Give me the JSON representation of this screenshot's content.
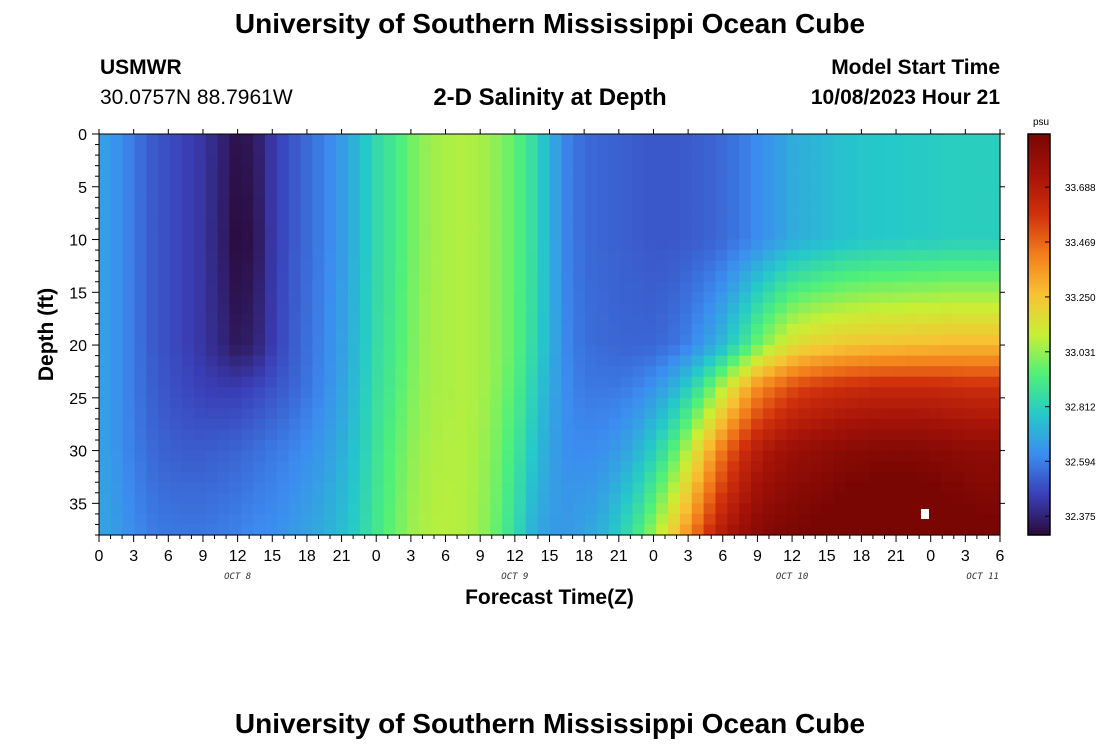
{
  "header": {
    "title": "University of Southern Mississippi Ocean Cube",
    "station": "USMWR",
    "coords": "30.0757N  88.7961W",
    "subtitle": "2-D Salinity at Depth",
    "model_label": "Model Start Time",
    "model_time": "10/08/2023 Hour 21"
  },
  "footer": {
    "title": "University of Southern Mississippi Ocean Cube"
  },
  "chart_data": {
    "type": "heatmap",
    "title": "2-D Salinity at Depth",
    "xlabel": "Forecast Time(Z)",
    "ylabel": "Depth (ft)",
    "x_tick_labels": [
      "0",
      "3",
      "6",
      "9",
      "12",
      "15",
      "18",
      "21",
      "0",
      "3",
      "6",
      "9",
      "12",
      "15",
      "18",
      "21",
      "0",
      "3",
      "6",
      "9",
      "12",
      "15",
      "18",
      "21",
      "0",
      "3",
      "6"
    ],
    "x_date_labels": [
      {
        "label": "OCT 8",
        "tick_index": 4
      },
      {
        "label": "OCT 9",
        "tick_index": 12
      },
      {
        "label": "OCT 10",
        "tick_index": 20
      },
      {
        "label": "OCT 11",
        "tick_index": 25.5
      }
    ],
    "x_range_hours": [
      0,
      78
    ],
    "y_tick_labels": [
      "0",
      "5",
      "10",
      "15",
      "20",
      "25",
      "30",
      "35"
    ],
    "y_ticks": [
      0,
      5,
      10,
      15,
      20,
      25,
      30,
      35
    ],
    "y_range": [
      0,
      38
    ],
    "y_inverted": true,
    "colorbar": {
      "unit": "psu",
      "ticks": [
        32.375,
        32.594,
        32.812,
        33.031,
        33.25,
        33.469,
        33.688
      ],
      "tick_labels": [
        "32.375",
        "32.594",
        "32.812",
        "33.031",
        "33.250",
        "33.469",
        "33.688"
      ],
      "min": 32.3,
      "max": 33.9,
      "colors": [
        "#2a0a3a",
        "#3a3fb8",
        "#3c8cf0",
        "#25c9c9",
        "#4ff07a",
        "#c9ef34",
        "#f8c233",
        "#f37d1b",
        "#d0300c",
        "#a51308",
        "#7a0604"
      ]
    },
    "hours": [
      0,
      1.5,
      3,
      4.5,
      6,
      7.5,
      9,
      10.5,
      12,
      13.5,
      15,
      16.5,
      18,
      19.5,
      21,
      22.5,
      24,
      25.5,
      27,
      28.5,
      30,
      31.5,
      33,
      34.5,
      36,
      37.5,
      39,
      40.5,
      42,
      43.5,
      45,
      46.5,
      48,
      49.5,
      51,
      52.5,
      54,
      55.5,
      57,
      58.5,
      60,
      61.5,
      63,
      64.5,
      66,
      67.5,
      69,
      70.5,
      72,
      73.5,
      75,
      76.5,
      78
    ],
    "depths": [
      0,
      10,
      20,
      24,
      30,
      38
    ],
    "salinity_rows": [
      [
        32.68,
        32.64,
        32.58,
        32.52,
        32.49,
        32.46,
        32.43,
        32.38,
        32.32,
        32.35,
        32.44,
        32.5,
        32.55,
        32.6,
        32.66,
        32.74,
        32.84,
        32.9,
        32.98,
        33.04,
        33.06,
        33.07,
        33.06,
        33.02,
        32.96,
        32.86,
        32.72,
        32.6,
        32.55,
        32.54,
        32.53,
        32.52,
        32.51,
        32.51,
        32.52,
        32.53,
        32.55,
        32.58,
        32.62,
        32.66,
        32.7,
        32.72,
        32.74,
        32.76,
        32.77,
        32.78,
        32.78,
        32.79,
        32.79,
        32.8,
        32.8,
        32.8,
        32.8
      ],
      [
        32.68,
        32.64,
        32.58,
        32.52,
        32.49,
        32.46,
        32.43,
        32.37,
        32.3,
        32.33,
        32.44,
        32.5,
        32.55,
        32.6,
        32.66,
        32.74,
        32.84,
        32.9,
        32.98,
        33.04,
        33.06,
        33.07,
        33.06,
        33.02,
        32.96,
        32.86,
        32.72,
        32.6,
        32.55,
        32.54,
        32.53,
        32.52,
        32.51,
        32.51,
        32.52,
        32.53,
        32.55,
        32.58,
        32.62,
        32.66,
        32.7,
        32.72,
        32.74,
        32.76,
        32.77,
        32.78,
        32.78,
        32.79,
        32.79,
        32.8,
        32.8,
        32.8,
        32.8
      ],
      [
        32.68,
        32.64,
        32.58,
        32.52,
        32.49,
        32.46,
        32.43,
        32.39,
        32.34,
        32.37,
        32.45,
        32.51,
        32.56,
        32.61,
        32.67,
        32.75,
        32.85,
        32.91,
        32.99,
        33.05,
        33.06,
        33.07,
        33.06,
        33.02,
        32.96,
        32.85,
        32.72,
        32.61,
        32.56,
        32.55,
        32.54,
        32.54,
        32.54,
        32.56,
        32.6,
        32.66,
        32.74,
        32.86,
        32.98,
        33.08,
        33.16,
        33.2,
        33.22,
        33.24,
        33.25,
        33.26,
        33.26,
        33.27,
        33.27,
        33.28,
        33.28,
        33.28,
        33.28
      ],
      [
        32.68,
        32.64,
        32.58,
        32.53,
        32.5,
        32.48,
        32.46,
        32.45,
        32.45,
        32.47,
        32.5,
        32.53,
        32.57,
        32.62,
        32.68,
        32.76,
        32.86,
        32.92,
        33.0,
        33.05,
        33.06,
        33.07,
        33.06,
        33.01,
        32.94,
        32.82,
        32.7,
        32.62,
        32.58,
        32.58,
        32.58,
        32.6,
        32.64,
        32.7,
        32.8,
        32.92,
        33.08,
        33.24,
        33.38,
        33.46,
        33.52,
        33.56,
        33.58,
        33.6,
        33.61,
        33.62,
        33.62,
        33.62,
        33.62,
        33.61,
        33.6,
        33.6,
        33.6
      ],
      [
        32.68,
        32.64,
        32.59,
        32.55,
        32.53,
        32.52,
        32.52,
        32.53,
        32.54,
        32.56,
        32.58,
        32.6,
        32.63,
        32.66,
        32.71,
        32.78,
        32.88,
        32.95,
        33.02,
        33.06,
        33.07,
        33.07,
        33.05,
        32.99,
        32.9,
        32.78,
        32.68,
        32.63,
        32.62,
        32.63,
        32.66,
        32.72,
        32.8,
        32.92,
        33.08,
        33.26,
        33.44,
        33.58,
        33.68,
        33.74,
        33.78,
        33.8,
        33.82,
        33.84,
        33.85,
        33.86,
        33.86,
        33.86,
        33.85,
        33.84,
        33.83,
        33.82,
        33.82
      ],
      [
        32.69,
        32.66,
        32.62,
        32.59,
        32.58,
        32.58,
        32.58,
        32.59,
        32.6,
        32.62,
        32.63,
        32.65,
        32.68,
        32.71,
        32.75,
        32.81,
        32.9,
        32.97,
        33.04,
        33.07,
        33.08,
        33.07,
        33.04,
        32.96,
        32.85,
        32.72,
        32.66,
        32.66,
        32.68,
        32.72,
        32.8,
        32.9,
        33.04,
        33.2,
        33.38,
        33.56,
        33.7,
        33.78,
        33.84,
        33.88,
        33.9,
        33.92,
        33.94,
        33.96,
        33.98,
        34.0,
        34.0,
        34.0,
        33.98,
        33.96,
        33.94,
        33.92,
        33.92
      ]
    ]
  }
}
